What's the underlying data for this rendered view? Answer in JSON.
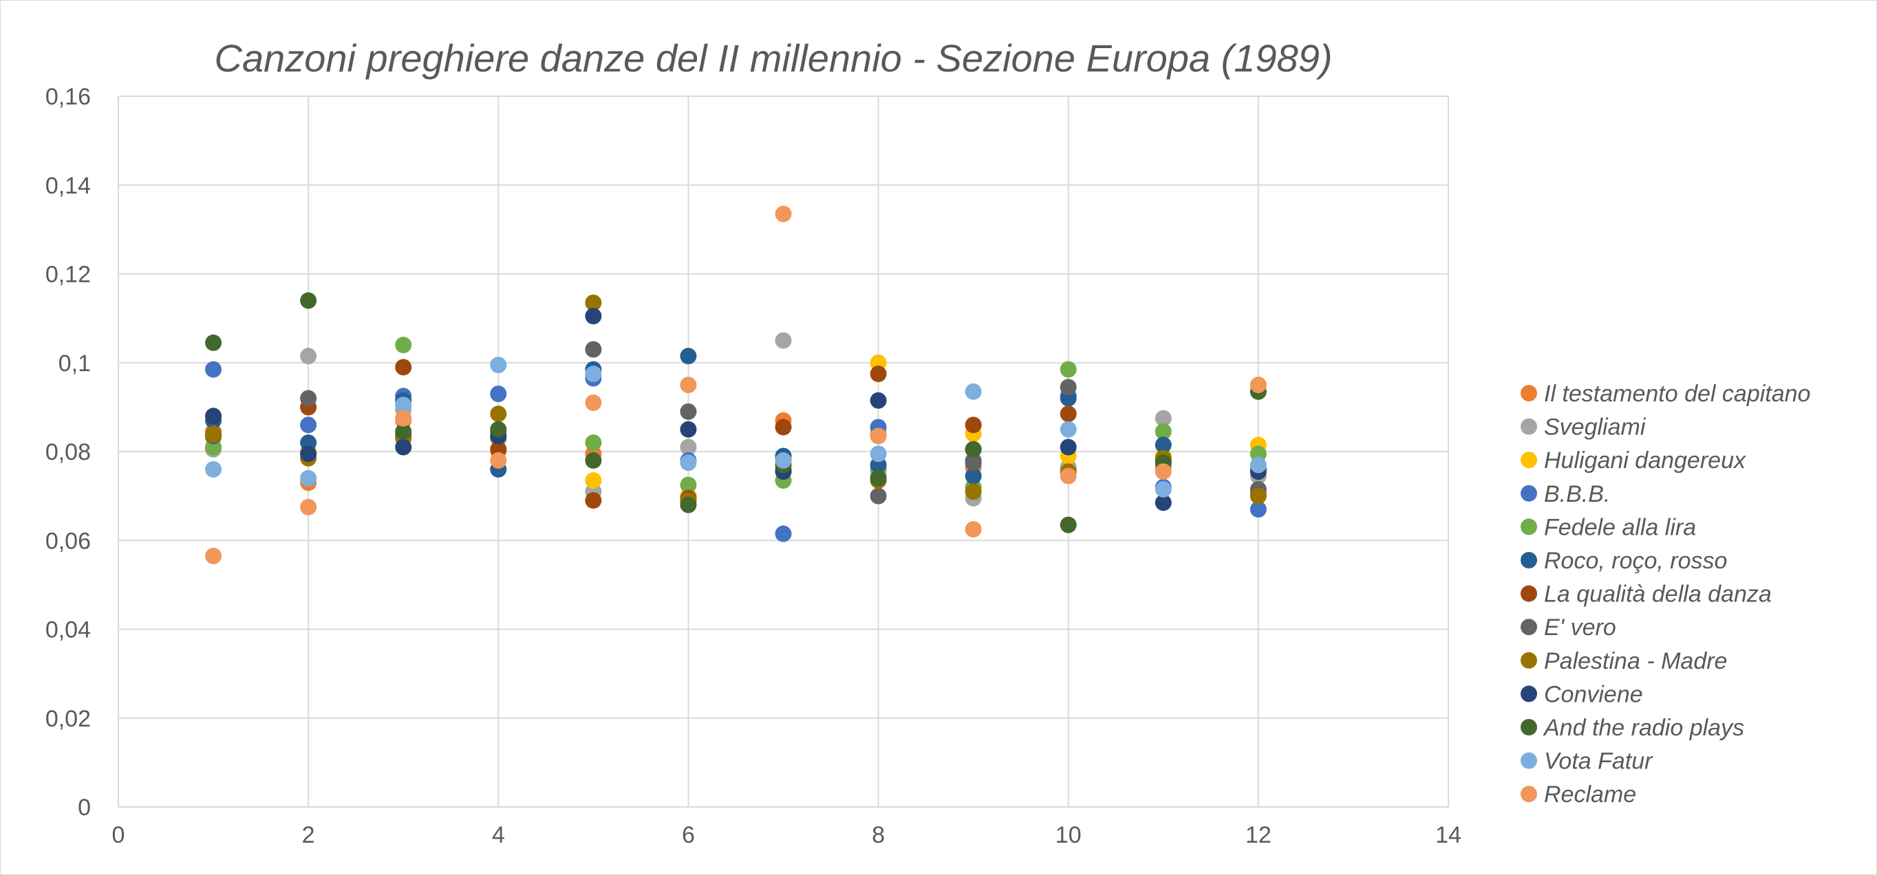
{
  "chart_data": {
    "type": "scatter",
    "title": "Canzoni preghiere danze del II millennio - Sezione Europa (1989)",
    "xlabel": "",
    "ylabel": "",
    "xlim": [
      0,
      14
    ],
    "ylim": [
      0,
      0.16
    ],
    "x_ticks": [
      "0",
      "2",
      "4",
      "6",
      "8",
      "10",
      "12",
      "14"
    ],
    "y_ticks": [
      "0",
      "0,02",
      "0,04",
      "0,06",
      "0,08",
      "0,1",
      "0,12",
      "0,14",
      "0,16"
    ],
    "grid": true,
    "legend_position": "right",
    "x": [
      1,
      2,
      3,
      4,
      5,
      6,
      7,
      8,
      9,
      10,
      11,
      12
    ],
    "series": [
      {
        "name": "Il testamento del capitano",
        "color": "#ED7D31",
        "values": [
          0.0845,
          0.073,
          0.087,
          0.0805,
          0.0795,
          0.07,
          0.087,
          0.084,
          0.0765,
          0.076,
          0.0765,
          0.095
        ]
      },
      {
        "name": "Svegliami",
        "color": "#A5A5A5",
        "values": [
          0.0805,
          0.1015,
          0.0895,
          0.083,
          0.071,
          0.081,
          0.105,
          0.0745,
          0.0695,
          0.0765,
          0.0875,
          0.0745
        ]
      },
      {
        "name": "Huligani dangereux",
        "color": "#FFC000",
        "values": [
          0.083,
          0.08,
          0.084,
          0.08,
          0.0735,
          0.07,
          0.0785,
          0.1,
          0.084,
          0.079,
          0.079,
          0.0815
        ]
      },
      {
        "name": "B.B.B.",
        "color": "#4472C4",
        "values": [
          0.0985,
          0.086,
          0.0925,
          0.093,
          0.0965,
          0.078,
          0.0615,
          0.0855,
          0.078,
          0.0925,
          0.072,
          0.067
        ]
      },
      {
        "name": "Fedele alla lira",
        "color": "#70AD47",
        "values": [
          0.081,
          0.0795,
          0.104,
          0.083,
          0.082,
          0.0725,
          0.0735,
          0.076,
          0.072,
          0.0985,
          0.0845,
          0.0795
        ]
      },
      {
        "name": "Roco, roço, rosso",
        "color": "#255E91",
        "values": [
          0.087,
          0.082,
          0.0915,
          0.076,
          0.0985,
          0.1015,
          0.079,
          0.077,
          0.0745,
          0.092,
          0.0815,
          0.076
        ]
      },
      {
        "name": "La qualità della danza",
        "color": "#9E480E",
        "values": [
          0.088,
          0.09,
          0.099,
          0.0805,
          0.069,
          0.0695,
          0.0855,
          0.0975,
          0.086,
          0.0885,
          0.078,
          0.0705
        ]
      },
      {
        "name": "E' vero",
        "color": "#636363",
        "values": [
          0.0835,
          0.092,
          0.0835,
          0.0845,
          0.103,
          0.089,
          0.076,
          0.07,
          0.0775,
          0.0945,
          0.0775,
          0.0715
        ]
      },
      {
        "name": "Palestina - Madre",
        "color": "#997300",
        "values": [
          0.084,
          0.0785,
          0.083,
          0.0885,
          0.1135,
          0.069,
          0.078,
          0.0735,
          0.071,
          0.0755,
          0.0785,
          0.07
        ]
      },
      {
        "name": "Conviene",
        "color": "#264478",
        "values": [
          0.088,
          0.0795,
          0.081,
          0.0835,
          0.1105,
          0.085,
          0.0755,
          0.0915,
          0.0805,
          0.081,
          0.0685,
          0.0755
        ]
      },
      {
        "name": "And the radio plays",
        "color": "#43682B",
        "values": [
          0.1045,
          0.114,
          0.0845,
          0.085,
          0.078,
          0.068,
          0.077,
          0.074,
          0.0805,
          0.0635,
          0.0775,
          0.0935
        ]
      },
      {
        "name": "Vota Fatur",
        "color": "#7CAFDD",
        "values": [
          0.076,
          0.074,
          0.0905,
          0.0995,
          0.0975,
          0.0775,
          0.078,
          0.0795,
          0.0935,
          0.085,
          0.0715,
          0.077
        ]
      },
      {
        "name": "Reclame",
        "color": "#F1975A",
        "values": [
          0.0565,
          0.0675,
          0.0875,
          0.078,
          0.091,
          0.095,
          0.1335,
          0.0835,
          0.0625,
          0.0745,
          0.0755,
          0.095
        ]
      }
    ]
  }
}
